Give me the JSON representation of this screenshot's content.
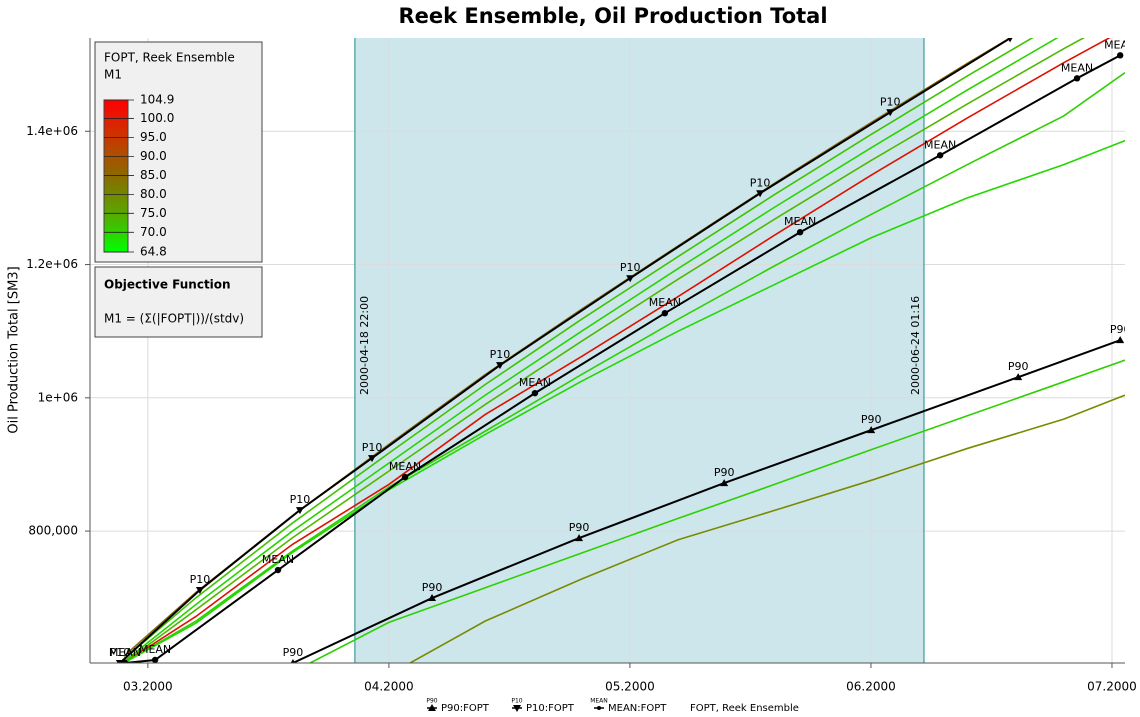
{
  "chart_data": {
    "type": "line",
    "title": "Reek Ensemble, Oil Production Total",
    "y_label": "Oil Production Total [SM3]",
    "xlim": [
      2.76,
      7.054
    ],
    "xticks": [
      {
        "value": 3,
        "label": "03.2000"
      },
      {
        "value": 4,
        "label": "04.2000"
      },
      {
        "value": 5,
        "label": "05.2000"
      },
      {
        "value": 6,
        "label": "06.2000"
      },
      {
        "value": 7,
        "label": "07.2000"
      }
    ],
    "ylim": [
      602000,
      1540000
    ],
    "yticks": [
      {
        "value": 800000,
        "label": "800,000"
      },
      {
        "value": 1000000,
        "label": "1e+06"
      },
      {
        "value": 1200000,
        "label": "1.2e+06"
      },
      {
        "value": 1400000,
        "label": "1.4e+06"
      }
    ],
    "grid": true,
    "time_window": {
      "x": [
        3.859,
        6.22
      ],
      "labels": [
        "2000-04-18 22:00",
        "2000-06-24 01:16"
      ],
      "color": "#cde6ec",
      "line_color": "#1a8a8a"
    },
    "series": [
      {
        "name": "P90:FOPT",
        "marker_label": "P90",
        "marker": "triangle-up",
        "color": "#000000",
        "x": [
          3.602,
          4.179,
          4.789,
          5.391,
          6.001,
          6.611,
          7.034
        ],
        "values": [
          602000,
          699500,
          789500,
          872000,
          951500,
          1031000,
          1086500
        ]
      },
      {
        "name": "P10:FOPT",
        "marker_label": "P10",
        "marker": "triangle-down",
        "color": "#000000",
        "x": [
          2.884,
          3.216,
          3.631,
          3.93,
          4.461,
          5.001,
          5.54,
          6.08,
          6.577
        ],
        "values": [
          602000,
          711500,
          831500,
          909500,
          1049000,
          1179500,
          1307000,
          1428500,
          1539500
        ]
      },
      {
        "name": "MEAN:FOPT",
        "marker_label": "MEAN",
        "marker": "circle",
        "color": "#000000",
        "x": [
          2.905,
          3.03,
          3.54,
          4.067,
          4.606,
          5.145,
          5.706,
          6.287,
          6.855,
          7.034
        ],
        "values": [
          602000,
          606500,
          741500,
          881000,
          1007000,
          1127000,
          1248500,
          1364000,
          1479500,
          1514000
        ]
      }
    ],
    "ensemble": {
      "name": "FOPT, Reek Ensemble",
      "lines": [
        {
          "color": "#8a6a00",
          "x": [
            2.9,
            3.2,
            3.6,
            4.0,
            4.4,
            4.8,
            5.2,
            5.6,
            6.0,
            6.4,
            6.8,
            7.054
          ],
          "values": [
            612000,
            708000,
            823000,
            930000,
            1035000,
            1133000,
            1228000,
            1322000,
            1413000,
            1502000,
            1588000,
            1640000
          ]
        },
        {
          "color": "#3ec400",
          "x": [
            2.9,
            3.2,
            3.6,
            4.0,
            4.4,
            4.8,
            5.2,
            5.6,
            6.0,
            6.4,
            6.8,
            7.054
          ],
          "values": [
            608000,
            700000,
            812000,
            917000,
            1020000,
            1118000,
            1212000,
            1305000,
            1395000,
            1483000,
            1568000,
            1620000
          ]
        },
        {
          "color": "#28d400",
          "x": [
            2.9,
            3.2,
            3.6,
            4.0,
            4.4,
            4.8,
            5.2,
            5.6,
            6.0,
            6.4,
            6.8,
            7.054
          ],
          "values": [
            604000,
            690000,
            800000,
            902000,
            1004000,
            1100000,
            1194000,
            1286000,
            1375000,
            1462000,
            1546000,
            1597000
          ]
        },
        {
          "color": "#50b800",
          "x": [
            2.9,
            3.2,
            3.6,
            4.0,
            4.4,
            4.8,
            5.2,
            5.6,
            6.0,
            6.4,
            6.8,
            7.054
          ],
          "values": [
            602000,
            682000,
            790000,
            890000,
            990000,
            1085000,
            1178000,
            1268000,
            1356000,
            1441000,
            1524000,
            1574000
          ]
        },
        {
          "color": "#e01000",
          "x": [
            2.9,
            3.2,
            3.6,
            4.0,
            4.4,
            4.8,
            5.2,
            5.6,
            6.0,
            6.4,
            6.8,
            7.054
          ],
          "values": [
            602000,
            672000,
            780000,
            870000,
            975000,
            1062000,
            1152000,
            1244000,
            1334000,
            1420000,
            1503000,
            1553000
          ]
        },
        {
          "color": "#30d000",
          "x": [
            2.9,
            3.2,
            3.6,
            4.0,
            4.4,
            4.8,
            5.2,
            5.6,
            6.0,
            6.4,
            6.8,
            7.054
          ],
          "values": [
            602000,
            665000,
            770000,
            866000,
            950000,
            1035000,
            1118000,
            1198000,
            1275000,
            1350000,
            1423000,
            1488000
          ]
        },
        {
          "color": "#22d800",
          "x": [
            2.9,
            3.2,
            3.6,
            4.0,
            4.4,
            4.8,
            5.2,
            5.6,
            6.0,
            6.4,
            6.8,
            7.054
          ],
          "values": [
            602000,
            662000,
            768000,
            862000,
            945000,
            1025000,
            1100000,
            1170000,
            1240000,
            1300000,
            1350000,
            1386000
          ]
        },
        {
          "color": "#2ed000",
          "x": [
            3.673,
            4.0,
            4.4,
            4.8,
            5.2,
            5.6,
            6.0,
            6.4,
            6.8,
            7.054
          ],
          "values": [
            602000,
            663000,
            715000,
            767000,
            819000,
            870000,
            922000,
            973000,
            1024000,
            1056500
          ]
        },
        {
          "color": "#7a8a00",
          "x": [
            4.088,
            4.4,
            4.8,
            5.2,
            5.6,
            6.0,
            6.4,
            6.8,
            7.054
          ],
          "values": [
            602000,
            665000,
            728000,
            787000,
            831000,
            876000,
            924000,
            968000,
            1004000
          ]
        }
      ]
    },
    "colorbar": {
      "title": "FOPT, Reek Ensemble",
      "subtitle": "M1",
      "range": [
        64.8,
        104.9
      ],
      "ticks": [
        104.9,
        {
          "value": 100,
          "label": "100.0"
        },
        {
          "value": 95,
          "label": "95.0"
        },
        {
          "value": 90,
          "label": "90.0"
        },
        {
          "value": 85,
          "label": "85.0"
        },
        {
          "value": 80,
          "label": "80.0"
        },
        {
          "value": 75,
          "label": "75.0"
        },
        {
          "value": 70,
          "label": "70.0"
        },
        64.8
      ],
      "colors": [
        "#00ff00",
        "#5aa800",
        "#8a6a00",
        "#c83800",
        "#ff0000"
      ]
    },
    "objective": {
      "title": "Objective Function",
      "formula": "M1 = (Σ(|FOPT|))/(stdv)"
    }
  }
}
